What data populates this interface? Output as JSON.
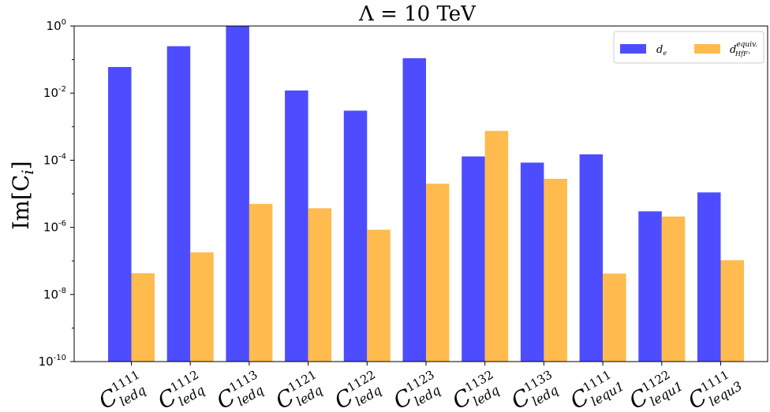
{
  "chart_data": {
    "type": "bar",
    "title": "Λ = 10 TeV",
    "ylabel": "Im[C",
    "ylabel_sub": "i",
    "ylabel_close": "]",
    "yscale": "log",
    "ylim": [
      1e-10,
      1
    ],
    "yticks": [
      {
        "base": "10",
        "exp": "0"
      },
      {
        "base": "10",
        "exp": "-2"
      },
      {
        "base": "10",
        "exp": "-4"
      },
      {
        "base": "10",
        "exp": "-6"
      },
      {
        "base": "10",
        "exp": "-8"
      },
      {
        "base": "10",
        "exp": "-10"
      }
    ],
    "categories": [
      {
        "main": "C",
        "sup": "1111",
        "sub": "ledq"
      },
      {
        "main": "C",
        "sup": "1112",
        "sub": "ledq"
      },
      {
        "main": "C",
        "sup": "1113",
        "sub": "ledq"
      },
      {
        "main": "C",
        "sup": "1121",
        "sub": "ledq"
      },
      {
        "main": "C",
        "sup": "1122",
        "sub": "ledq"
      },
      {
        "main": "C",
        "sup": "1123",
        "sub": "ledq"
      },
      {
        "main": "C",
        "sup": "1132",
        "sub": "ledq"
      },
      {
        "main": "C",
        "sup": "1133",
        "sub": "ledq"
      },
      {
        "main": "C",
        "sup": "1111",
        "sub": "lequ1"
      },
      {
        "main": "C",
        "sup": "1122",
        "sub": "lequ1"
      },
      {
        "main": "C",
        "sup": "1111",
        "sub": "lequ3"
      }
    ],
    "series": [
      {
        "name": "d",
        "name_sub": "e",
        "color": "#4d4dff",
        "values": [
          0.06,
          0.25,
          1.0,
          0.012,
          0.003,
          0.11,
          0.00013,
          8.5e-05,
          0.00015,
          3e-06,
          1.1e-05
        ]
      },
      {
        "name": "d",
        "name_sup": "equiv.",
        "name_sub": "HfF⁺",
        "color": "#ffbb4d",
        "values": [
          4.3e-08,
          1.8e-07,
          5e-06,
          3.7e-06,
          8.5e-07,
          2e-05,
          0.00075,
          2.8e-05,
          4.2e-08,
          2.1e-06,
          1.05e-07
        ]
      }
    ],
    "legend_position": "top-right",
    "grid": false
  }
}
